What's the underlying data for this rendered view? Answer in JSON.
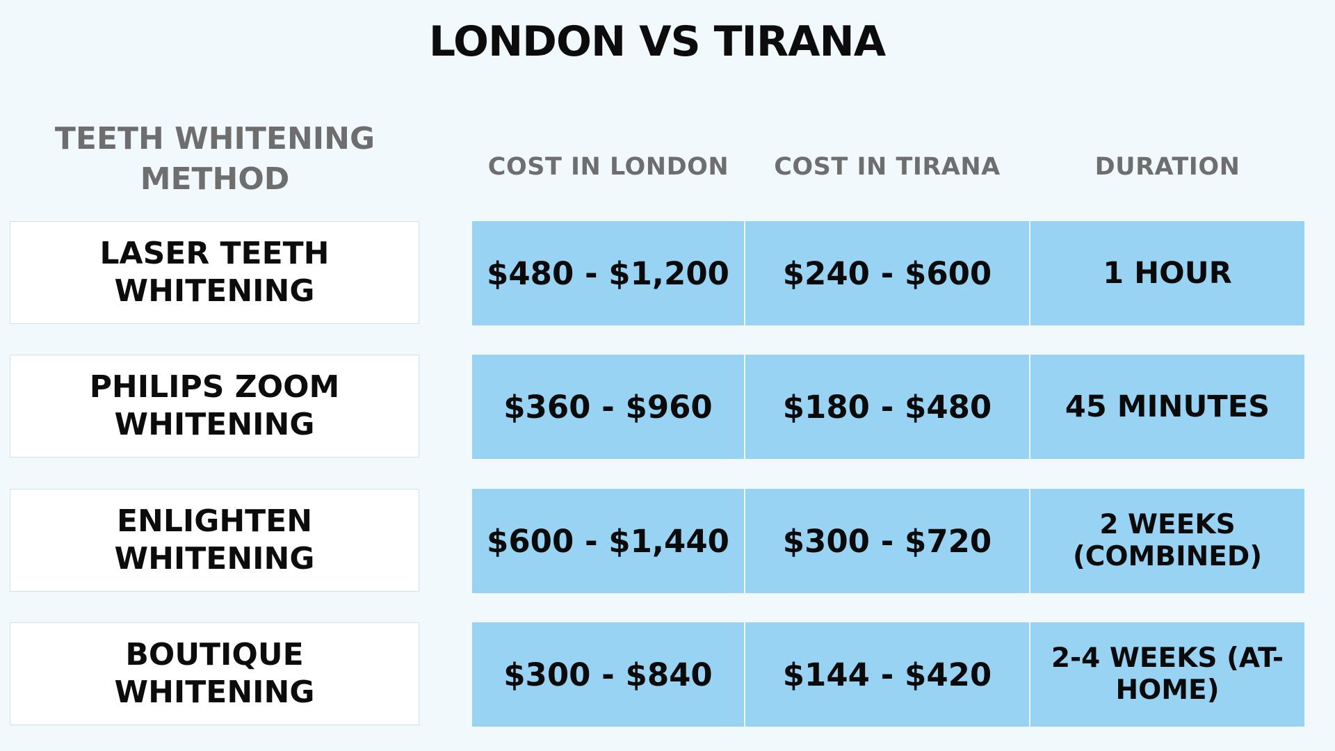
{
  "title": "LONDON VS TIRANA",
  "headers": {
    "method": "TEETH WHITENING METHOD",
    "london": "COST IN LONDON",
    "tirana": "COST IN TIRANA",
    "duration": "DURATION"
  },
  "rows": [
    {
      "method": "LASER TEETH WHITENING",
      "london": "$480 - $1,200",
      "tirana": "$240 - $600",
      "duration": "1 HOUR"
    },
    {
      "method": "PHILIPS ZOOM WHITENING",
      "london": "$360 - $960",
      "tirana": "$180 - $480",
      "duration": "45 MINUTES"
    },
    {
      "method": "ENLIGHTEN WHITENING",
      "london": "$600 - $1,440",
      "tirana": "$300 - $720",
      "duration": "2 WEEKS (COMBINED)"
    },
    {
      "method": "BOUTIQUE WHITENING",
      "london": "$300 - $840",
      "tirana": "$144 - $420",
      "duration": "2-4 WEEKS (AT-HOME)"
    }
  ],
  "colors": {
    "background": "#f1f9fd",
    "cell_blue": "#98d3f4",
    "header_gray": "#6e6e6e",
    "text_dark": "#0c0c0c"
  }
}
